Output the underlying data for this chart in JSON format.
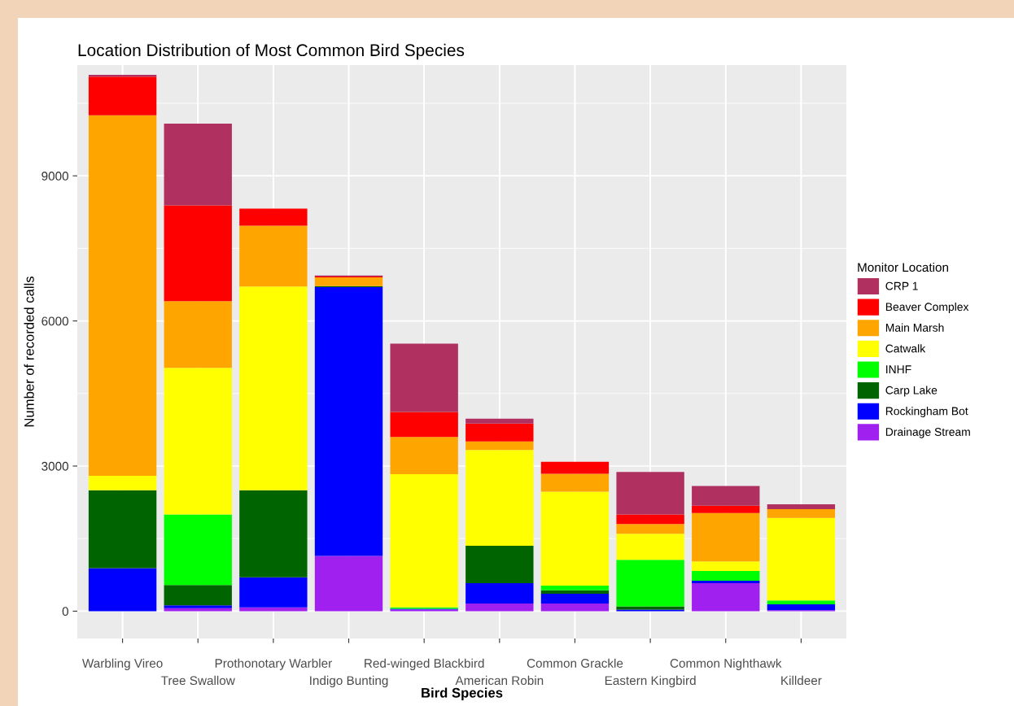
{
  "chart_data": {
    "type": "bar",
    "stacked": true,
    "title": "Location Distribution of Most Common Bird Species",
    "xlabel": "Bird Species",
    "ylabel": "Number of recorded calls",
    "legend_title": "Monitor Location",
    "legend": "right",
    "grid": true,
    "categories": [
      "Warbling Vireo",
      "Tree Swallow",
      "Prothonotary Warbler",
      "Indigo Bunting",
      "Red-winged Blackbird",
      "American Robin",
      "Common Grackle",
      "Eastern Kingbird",
      "Common Nighthawk",
      "Killdeer"
    ],
    "ylim": [
      -565,
      11290
    ],
    "yticks": [
      0,
      3000,
      6000,
      9000
    ],
    "series": [
      {
        "name": "Drainage Stream",
        "color": "#a020f0",
        "values": [
          0,
          60,
          80,
          1140,
          30,
          160,
          160,
          0,
          580,
          20
        ]
      },
      {
        "name": "Rockingham Bot",
        "color": "#0000ff",
        "values": [
          890,
          60,
          620,
          5560,
          20,
          420,
          200,
          30,
          50,
          120
        ]
      },
      {
        "name": "Carp Lake",
        "color": "#006400",
        "values": [
          1610,
          420,
          1800,
          20,
          0,
          770,
          70,
          70,
          0,
          0
        ]
      },
      {
        "name": "INHF",
        "color": "#00ff00",
        "values": [
          0,
          1460,
          0,
          0,
          30,
          0,
          100,
          960,
          200,
          80
        ]
      },
      {
        "name": "Catwalk",
        "color": "#ffff00",
        "values": [
          300,
          3030,
          4210,
          0,
          2750,
          1980,
          1940,
          540,
          200,
          1710
        ]
      },
      {
        "name": "Main Marsh",
        "color": "#ffa500",
        "values": [
          7450,
          1380,
          1260,
          180,
          770,
          180,
          370,
          200,
          1000,
          180
        ]
      },
      {
        "name": "Beaver Complex",
        "color": "#ff0000",
        "values": [
          800,
          1980,
          350,
          20,
          520,
          370,
          250,
          200,
          150,
          0
        ]
      },
      {
        "name": "CRP 1",
        "color": "#b03060",
        "values": [
          40,
          1690,
          0,
          20,
          1410,
          100,
          0,
          880,
          410,
          100
        ]
      }
    ]
  }
}
